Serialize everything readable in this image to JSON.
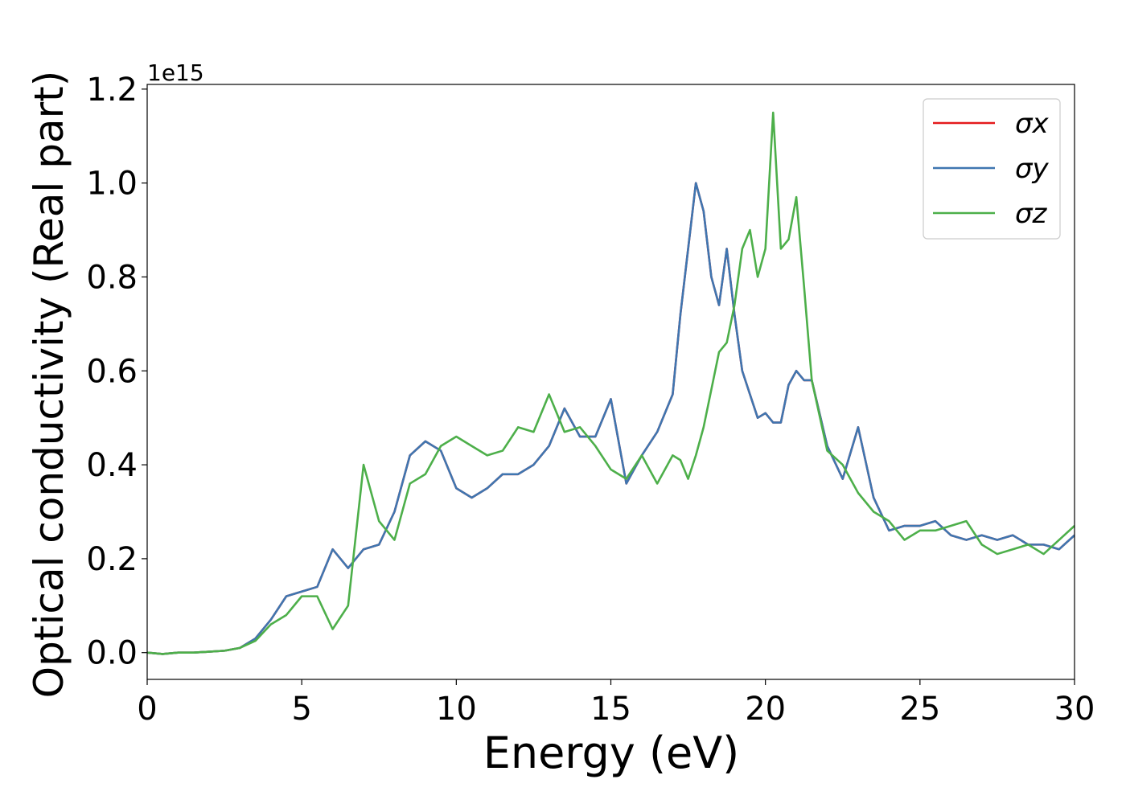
{
  "chart_data": {
    "type": "line",
    "xlabel": "Energy (eV)",
    "ylabel": "Optical conductivity (Real part)",
    "y_offset_label": "1e15",
    "x": [
      0,
      0.5,
      1,
      1.5,
      2,
      2.5,
      3,
      3.5,
      4,
      4.5,
      5,
      5.5,
      6,
      6.5,
      7,
      7.5,
      8,
      8.5,
      9,
      9.5,
      10,
      10.5,
      11,
      11.5,
      12,
      12.5,
      13,
      13.5,
      14,
      14.5,
      15,
      15.5,
      16,
      16.5,
      17,
      17.25,
      17.5,
      17.75,
      18,
      18.25,
      18.5,
      18.75,
      19,
      19.25,
      19.5,
      19.75,
      20,
      20.25,
      20.5,
      20.75,
      21,
      21.25,
      21.5,
      22,
      22.5,
      23,
      23.5,
      24,
      24.5,
      25,
      25.5,
      26,
      26.5,
      27,
      27.5,
      28,
      28.5,
      29,
      29.5,
      30
    ],
    "series": [
      {
        "name": "σx",
        "color": "#e41a1c",
        "values": [
          0,
          -0.003,
          0,
          0,
          0.002,
          0.004,
          0.01,
          0.03,
          0.07,
          0.12,
          0.13,
          0.14,
          0.22,
          0.18,
          0.22,
          0.23,
          0.3,
          0.42,
          0.45,
          0.43,
          0.35,
          0.33,
          0.35,
          0.38,
          0.38,
          0.4,
          0.44,
          0.52,
          0.46,
          0.46,
          0.54,
          0.36,
          0.42,
          0.47,
          0.55,
          0.72,
          0.86,
          1.0,
          0.94,
          0.8,
          0.74,
          0.86,
          0.72,
          0.6,
          0.55,
          0.5,
          0.51,
          0.49,
          0.49,
          0.57,
          0.6,
          0.58,
          0.58,
          0.44,
          0.37,
          0.48,
          0.33,
          0.26,
          0.27,
          0.27,
          0.28,
          0.25,
          0.24,
          0.25,
          0.24,
          0.25,
          0.23,
          0.23,
          0.22,
          0.25
        ]
      },
      {
        "name": "σy",
        "color": "#3f76b0",
        "values": [
          0,
          -0.003,
          0,
          0,
          0.002,
          0.004,
          0.01,
          0.03,
          0.07,
          0.12,
          0.13,
          0.14,
          0.22,
          0.18,
          0.22,
          0.23,
          0.3,
          0.42,
          0.45,
          0.43,
          0.35,
          0.33,
          0.35,
          0.38,
          0.38,
          0.4,
          0.44,
          0.52,
          0.46,
          0.46,
          0.54,
          0.36,
          0.42,
          0.47,
          0.55,
          0.72,
          0.86,
          1.0,
          0.94,
          0.8,
          0.74,
          0.86,
          0.72,
          0.6,
          0.55,
          0.5,
          0.51,
          0.49,
          0.49,
          0.57,
          0.6,
          0.58,
          0.58,
          0.44,
          0.37,
          0.48,
          0.33,
          0.26,
          0.27,
          0.27,
          0.28,
          0.25,
          0.24,
          0.25,
          0.24,
          0.25,
          0.23,
          0.23,
          0.22,
          0.25
        ]
      },
      {
        "name": "σz",
        "color": "#4daf4a",
        "values": [
          0,
          -0.003,
          0,
          0,
          0.002,
          0.004,
          0.01,
          0.025,
          0.06,
          0.08,
          0.12,
          0.12,
          0.05,
          0.1,
          0.4,
          0.28,
          0.24,
          0.36,
          0.38,
          0.44,
          0.46,
          0.44,
          0.42,
          0.43,
          0.48,
          0.47,
          0.55,
          0.47,
          0.48,
          0.44,
          0.39,
          0.37,
          0.42,
          0.36,
          0.42,
          0.41,
          0.37,
          0.42,
          0.48,
          0.56,
          0.64,
          0.66,
          0.74,
          0.86,
          0.9,
          0.8,
          0.86,
          1.15,
          0.86,
          0.88,
          0.97,
          0.78,
          0.58,
          0.43,
          0.4,
          0.34,
          0.3,
          0.28,
          0.24,
          0.26,
          0.26,
          0.27,
          0.28,
          0.23,
          0.21,
          0.22,
          0.23,
          0.21,
          0.24,
          0.27
        ]
      }
    ],
    "xlim": [
      0,
      30
    ],
    "xticks": [
      0,
      5,
      10,
      15,
      20,
      25,
      30
    ],
    "ylim": [
      -0.057,
      1.21
    ],
    "yticks": [
      {
        "value": 0,
        "label": "0.0"
      },
      0.2,
      0.4,
      0.6,
      0.8,
      {
        "value": 1,
        "label": "1.0"
      },
      1.2
    ],
    "legend": "upper right",
    "grid": false
  }
}
